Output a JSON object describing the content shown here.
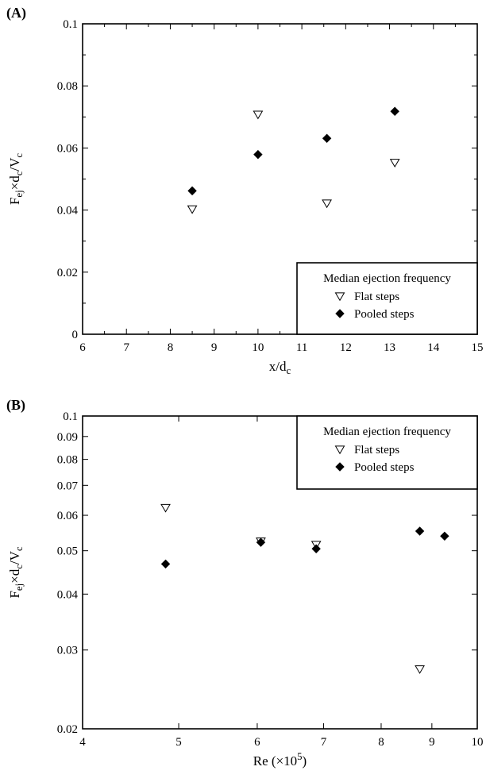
{
  "chart_data": [
    {
      "panel": "(A)",
      "type": "scatter",
      "xlabel": "x/d_c",
      "ylabel": "F_ej×d_c/V_c",
      "xlim": [
        6,
        15
      ],
      "ylim": [
        0,
        0.1
      ],
      "xscale": "linear",
      "yscale": "linear",
      "xticks": [
        "6",
        "7",
        "8",
        "9",
        "10",
        "11",
        "12",
        "13",
        "14",
        "15"
      ],
      "yticks": [
        "0",
        "0.02",
        "0.04",
        "0.06",
        "0.08",
        "0.1"
      ],
      "legend": {
        "title": "Median ejection frequency",
        "position": "lower-right",
        "entries": [
          "Flat steps",
          "Pooled steps"
        ]
      },
      "series": [
        {
          "name": "Flat steps",
          "marker": "open-triangle-down",
          "points": [
            [
              8.5,
              0.0403
            ],
            [
              10.0,
              0.0708
            ],
            [
              11.57,
              0.0422
            ],
            [
              13.12,
              0.0553
            ]
          ]
        },
        {
          "name": "Pooled steps",
          "marker": "filled-diamond",
          "points": [
            [
              8.5,
              0.0462
            ],
            [
              10.0,
              0.0579
            ],
            [
              11.57,
              0.0631
            ],
            [
              13.12,
              0.0718
            ]
          ]
        }
      ]
    },
    {
      "panel": "(B)",
      "type": "scatter",
      "xlabel": "Re (×10^5)",
      "ylabel": "F_ej×d_c/V_c",
      "xlim": [
        4,
        10
      ],
      "ylim": [
        0.02,
        0.1
      ],
      "xscale": "log",
      "yscale": "log",
      "xticks": [
        "4",
        "5",
        "6",
        "7",
        "8",
        "9",
        "10"
      ],
      "yticks": [
        "0.02",
        "0.03",
        "0.04",
        "0.05",
        "0.06",
        "0.07",
        "0.08",
        "0.09",
        "0.1"
      ],
      "legend": {
        "title": "Median ejection frequency",
        "position": "upper-right",
        "entries": [
          "Flat steps",
          "Pooled steps"
        ]
      },
      "series": [
        {
          "name": "Flat steps",
          "marker": "open-triangle-down",
          "points": [
            [
              4.85,
              0.0624
            ],
            [
              6.05,
              0.0525
            ],
            [
              6.88,
              0.0516
            ],
            [
              8.75,
              0.0272
            ]
          ]
        },
        {
          "name": "Pooled steps",
          "marker": "filled-diamond",
          "points": [
            [
              4.85,
              0.0467
            ],
            [
              6.05,
              0.0522
            ],
            [
              6.88,
              0.0505
            ],
            [
              8.75,
              0.0553
            ],
            [
              9.27,
              0.0539
            ]
          ]
        }
      ]
    }
  ]
}
